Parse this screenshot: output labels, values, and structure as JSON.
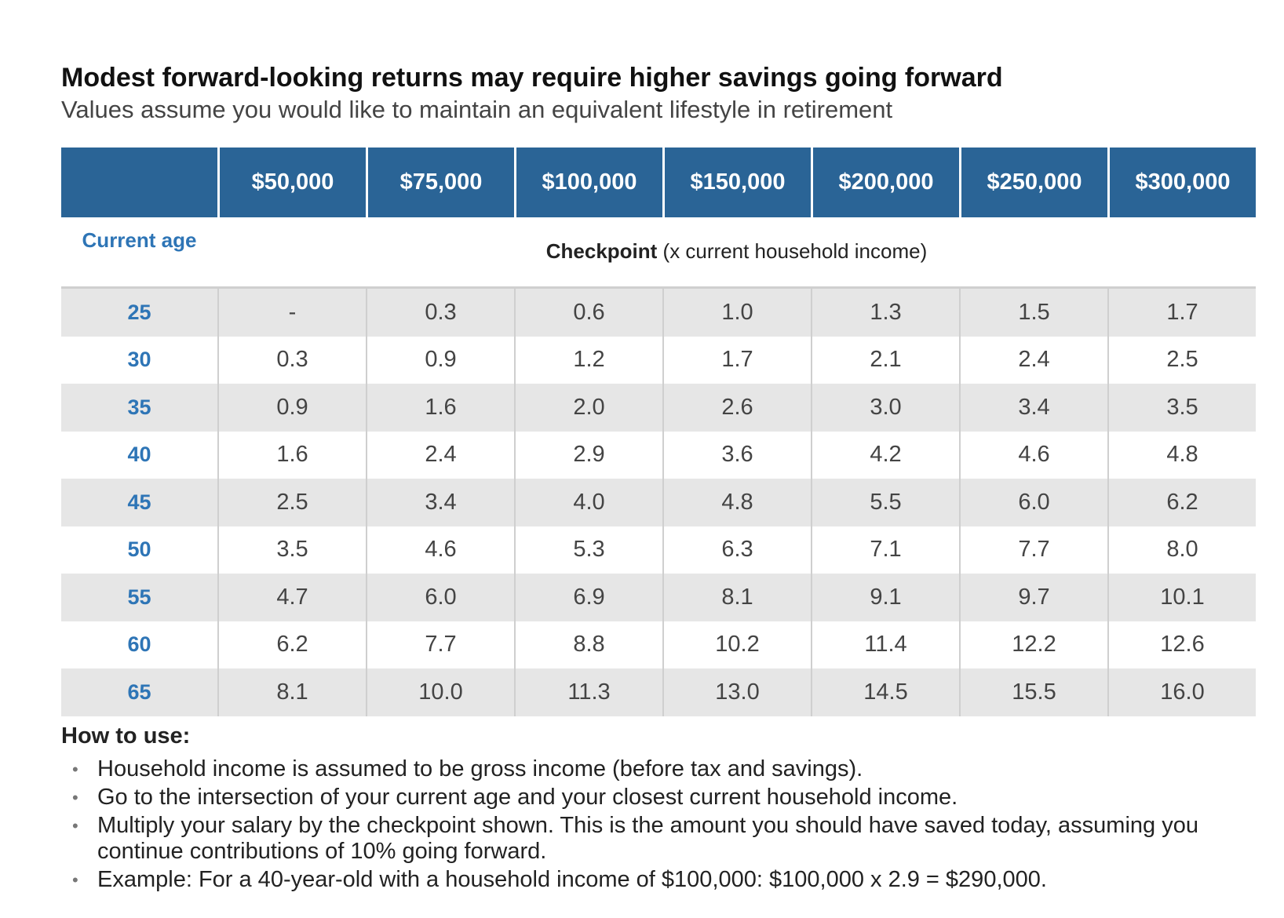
{
  "title": "Modest forward-looking returns may require higher savings going forward",
  "subtitle": "Values assume you would like to maintain an equivalent lifestyle in retirement",
  "table": {
    "incomes": [
      "$50,000",
      "$75,000",
      "$100,000",
      "$150,000",
      "$200,000",
      "$250,000",
      "$300,000"
    ],
    "age_label": "Current age",
    "checkpoint_bold": "Checkpoint",
    "checkpoint_rest": " (x current household income)",
    "rows": [
      {
        "age": "25",
        "values": [
          "-",
          "0.3",
          "0.6",
          "1.0",
          "1.3",
          "1.5",
          "1.7"
        ]
      },
      {
        "age": "30",
        "values": [
          "0.3",
          "0.9",
          "1.2",
          "1.7",
          "2.1",
          "2.4",
          "2.5"
        ]
      },
      {
        "age": "35",
        "values": [
          "0.9",
          "1.6",
          "2.0",
          "2.6",
          "3.0",
          "3.4",
          "3.5"
        ]
      },
      {
        "age": "40",
        "values": [
          "1.6",
          "2.4",
          "2.9",
          "3.6",
          "4.2",
          "4.6",
          "4.8"
        ]
      },
      {
        "age": "45",
        "values": [
          "2.5",
          "3.4",
          "4.0",
          "4.8",
          "5.5",
          "6.0",
          "6.2"
        ]
      },
      {
        "age": "50",
        "values": [
          "3.5",
          "4.6",
          "5.3",
          "6.3",
          "7.1",
          "7.7",
          "8.0"
        ]
      },
      {
        "age": "55",
        "values": [
          "4.7",
          "6.0",
          "6.9",
          "8.1",
          "9.1",
          "9.7",
          "10.1"
        ]
      },
      {
        "age": "60",
        "values": [
          "6.2",
          "7.7",
          "8.8",
          "10.2",
          "11.4",
          "12.2",
          "12.6"
        ]
      },
      {
        "age": "65",
        "values": [
          "8.1",
          "10.0",
          "11.3",
          "13.0",
          "14.5",
          "15.5",
          "16.0"
        ]
      }
    ]
  },
  "how_to": {
    "heading": "How to use:",
    "bullets": [
      "Household income is assumed to be gross income (before tax and savings).",
      "Go to the intersection of your current age and your closest current household income.",
      "Multiply your salary by the checkpoint shown. This is the amount you should have saved today, assuming you continue contributions of 10% going forward.",
      "Example: For a 40-year-old with a household income of $100,000: $100,000 x 2.9 = $290,000."
    ]
  },
  "colors": {
    "header_bg": "#2a6496",
    "age_text": "#2e75b6",
    "shade": "#e6e6e6"
  }
}
